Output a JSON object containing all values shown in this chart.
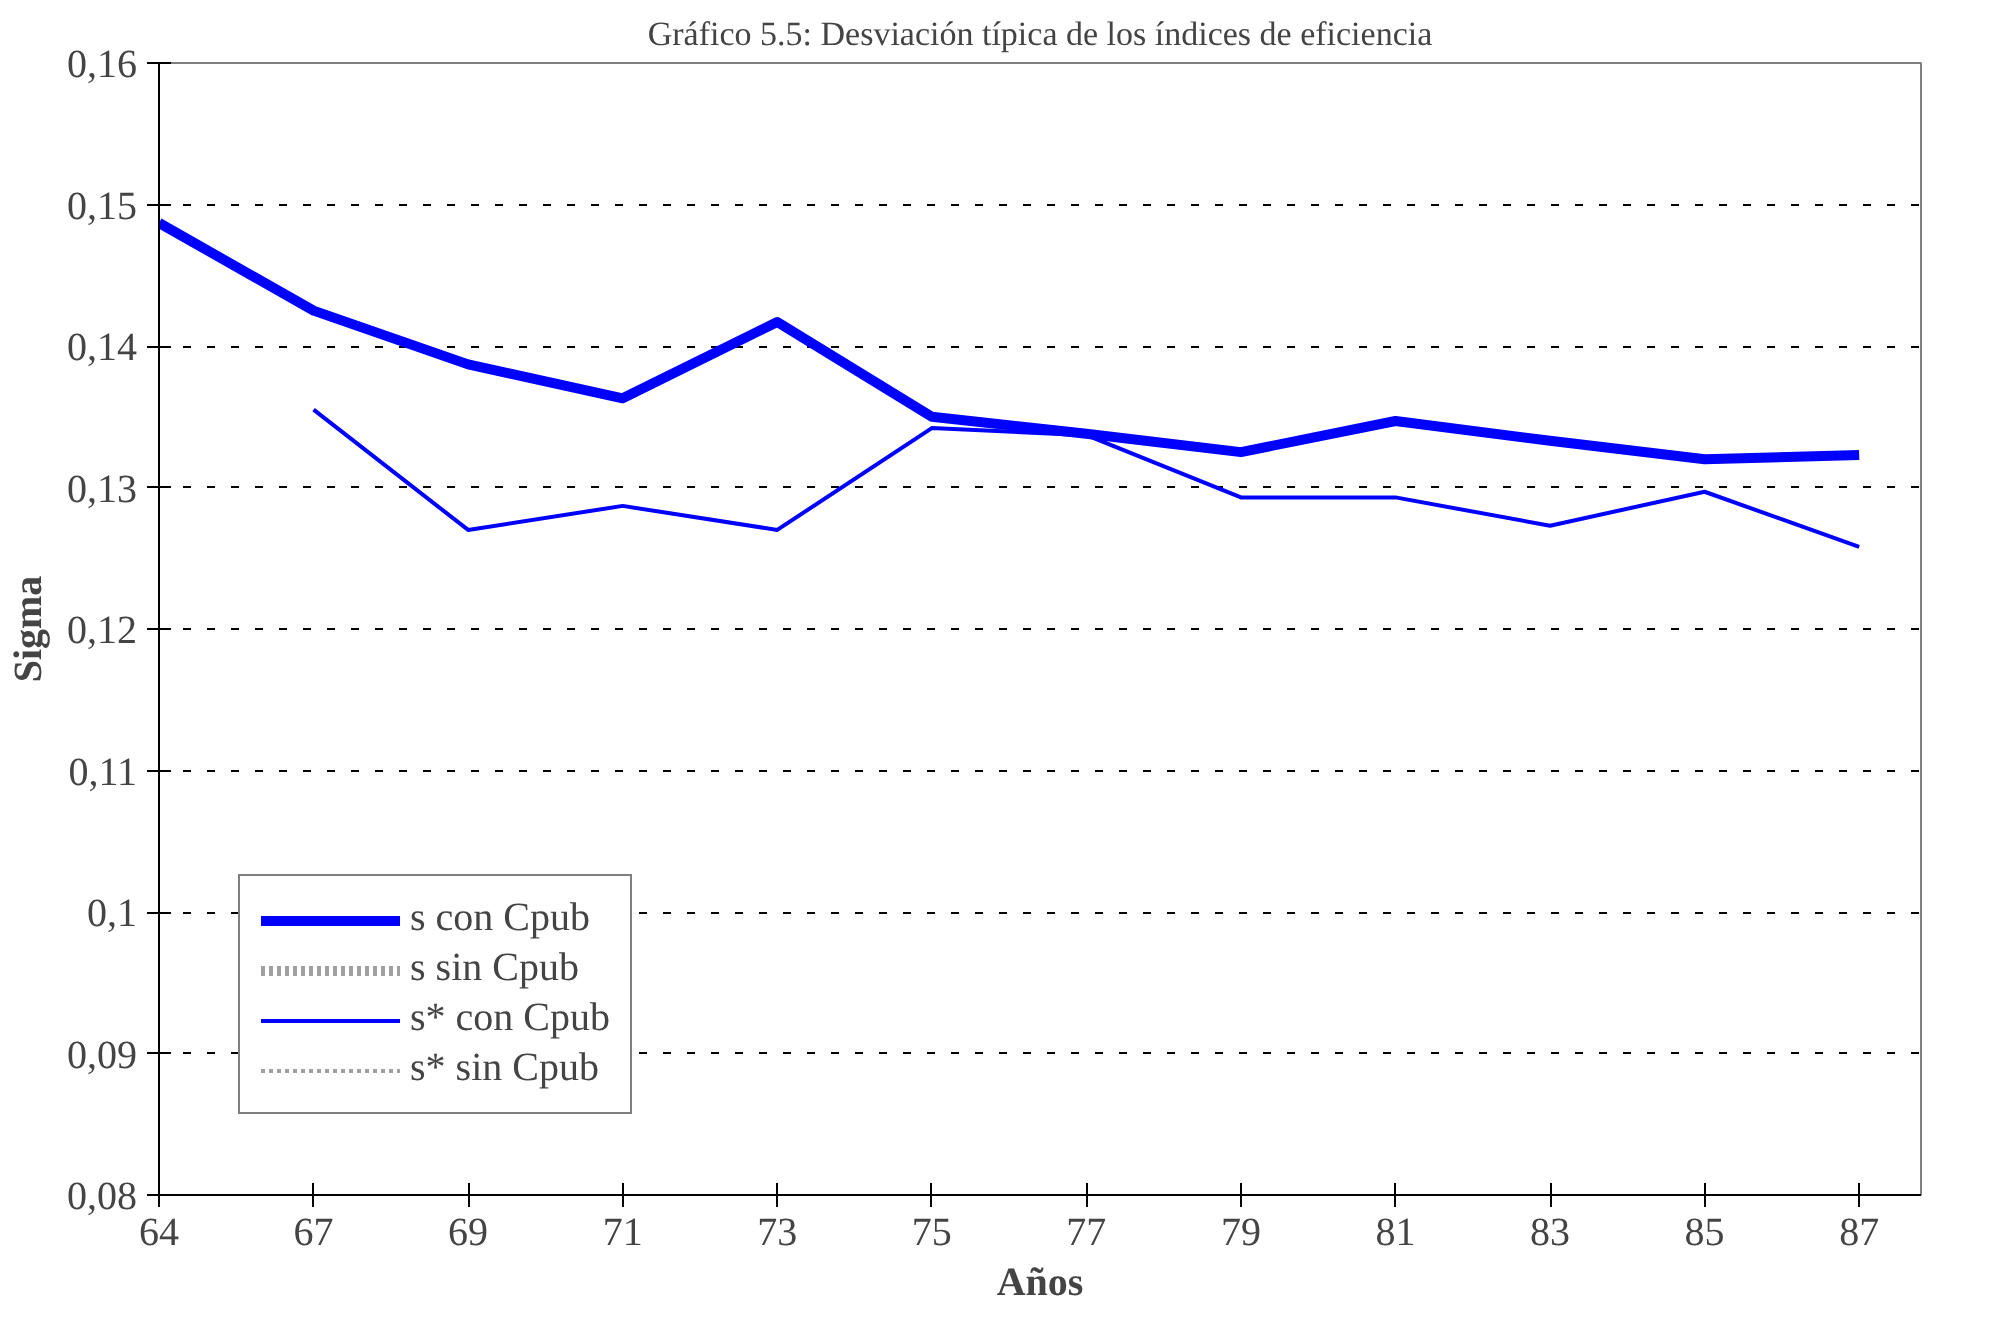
{
  "chart_data": {
    "type": "line",
    "title": "Gráfico 5.5: Desviación típica de los índices de eficiencia",
    "xlabel": "Años",
    "ylabel": "Sigma",
    "categories": [
      "64",
      "67",
      "69",
      "71",
      "73",
      "75",
      "77",
      "79",
      "81",
      "83",
      "85",
      "87"
    ],
    "series": [
      {
        "name": "s con Cpub",
        "color": "#0000ff",
        "line_style": "solid",
        "values": [
          0.1487,
          0.1425,
          0.1387,
          0.1363,
          0.1417,
          0.135,
          0.1338,
          0.1325,
          0.1347,
          0.1333,
          0.132,
          0.1323
        ]
      },
      {
        "name": "s sin Cpub",
        "color": "#a0a0a0",
        "line_style": "dotted",
        "values": [
          null,
          null,
          null,
          null,
          null,
          null,
          null,
          null,
          null,
          null,
          null,
          null
        ]
      },
      {
        "name": "s* con Cpub",
        "color": "#0000ff",
        "line_style": "solid",
        "values": [
          null,
          0.1355,
          0.127,
          0.1287,
          0.127,
          0.1342,
          0.1337,
          0.1293,
          0.1293,
          0.1273,
          0.1297,
          0.1258
        ]
      },
      {
        "name": "s* sin Cpub",
        "color": "#a0a0a0",
        "line_style": "dotted",
        "values": [
          null,
          null,
          null,
          null,
          null,
          null,
          null,
          null,
          null,
          null,
          null,
          null
        ]
      }
    ],
    "ylim": [
      0.08,
      0.16
    ],
    "yticks": [
      {
        "value": 0.08,
        "label": "0,08"
      },
      {
        "value": 0.09,
        "label": "0,09"
      },
      {
        "value": 0.1,
        "label": "0,1"
      },
      {
        "value": 0.11,
        "label": "0,11"
      },
      {
        "value": 0.12,
        "label": "0,12"
      },
      {
        "value": 0.13,
        "label": "0,13"
      },
      {
        "value": 0.14,
        "label": "0,14"
      },
      {
        "value": 0.15,
        "label": "0,15"
      },
      {
        "value": 0.16,
        "label": "0,16"
      }
    ],
    "grid": "y",
    "legend": "bottom left",
    "marker": "none"
  }
}
